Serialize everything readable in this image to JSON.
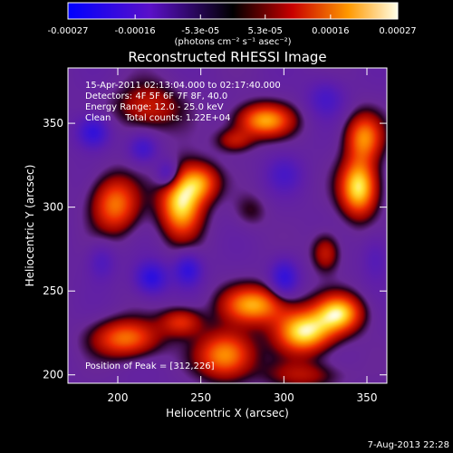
{
  "chart_data": {
    "type": "heatmap",
    "title": "Reconstructed RHESSI Image",
    "xlabel": "Heliocentric X (arcsec)",
    "ylabel": "Heliocentric Y (arcsec)",
    "xlim": [
      170,
      362
    ],
    "ylim": [
      195,
      383
    ],
    "x_ticks": [
      200,
      250,
      300,
      350
    ],
    "y_ticks": [
      200,
      250,
      300,
      350
    ],
    "colorbar": {
      "range": [
        -0.00027,
        0.00027
      ],
      "tick_values": [
        -0.00027,
        -0.00016,
        -5.3e-05,
        5.3e-05,
        0.00016,
        0.00027
      ],
      "tick_labels": [
        "-0.00027",
        "-0.00016",
        "-5.3e-05",
        "5.3e-05",
        "0.00016",
        "0.00027"
      ],
      "units": "(photons cm⁻² s⁻¹ asec⁻²)"
    },
    "annotations": [
      "15-Apr-2011 02:13:04.000 to 02:17:40.000",
      "Detectors: 4F 5F 6F 7F 8F, 40.0",
      "Energy Range: 12.0 - 25.0 keV",
      "Clean     Total counts: 1.22E+04"
    ],
    "peak_label": "Position of Peak = [312,226]",
    "peak": [
      312,
      226
    ],
    "sources": [
      {
        "x": 238,
        "y": 303,
        "sx": 9,
        "sy": 14,
        "amp": 1.0
      },
      {
        "x": 250,
        "y": 315,
        "sx": 8,
        "sy": 8,
        "amp": 0.6
      },
      {
        "x": 312,
        "y": 226,
        "sx": 12,
        "sy": 9,
        "amp": 1.0
      },
      {
        "x": 333,
        "y": 237,
        "sx": 10,
        "sy": 8,
        "amp": 0.9
      },
      {
        "x": 282,
        "y": 242,
        "sx": 14,
        "sy": 8,
        "amp": 0.8
      },
      {
        "x": 265,
        "y": 212,
        "sx": 12,
        "sy": 10,
        "amp": 0.8
      },
      {
        "x": 205,
        "y": 222,
        "sx": 14,
        "sy": 8,
        "amp": 0.7
      },
      {
        "x": 238,
        "y": 232,
        "sx": 9,
        "sy": 6,
        "amp": 0.5
      },
      {
        "x": 345,
        "y": 312,
        "sx": 8,
        "sy": 12,
        "amp": 1.0
      },
      {
        "x": 348,
        "y": 342,
        "sx": 8,
        "sy": 10,
        "amp": 0.7
      },
      {
        "x": 288,
        "y": 352,
        "sx": 12,
        "sy": 7,
        "amp": 0.8
      },
      {
        "x": 270,
        "y": 340,
        "sx": 8,
        "sy": 5,
        "amp": 0.4
      },
      {
        "x": 198,
        "y": 302,
        "sx": 10,
        "sy": 12,
        "amp": 0.7
      },
      {
        "x": 218,
        "y": 360,
        "sx": 14,
        "sy": 10,
        "amp": 0.45
      },
      {
        "x": 325,
        "y": 273,
        "sx": 6,
        "sy": 8,
        "amp": 0.45
      },
      {
        "x": 280,
        "y": 298,
        "sx": 7,
        "sy": 7,
        "amp": 0.2
      },
      {
        "x": 312,
        "y": 200,
        "sx": 16,
        "sy": 6,
        "amp": 0.35
      },
      {
        "x": 215,
        "y": 335,
        "sx": 6,
        "sy": 6,
        "amp": -0.4
      },
      {
        "x": 220,
        "y": 258,
        "sx": 7,
        "sy": 7,
        "amp": -0.6
      },
      {
        "x": 242,
        "y": 263,
        "sx": 6,
        "sy": 7,
        "amp": -0.55
      },
      {
        "x": 300,
        "y": 258,
        "sx": 6,
        "sy": 8,
        "amp": -0.55
      },
      {
        "x": 185,
        "y": 345,
        "sx": 7,
        "sy": 7,
        "amp": -0.6
      },
      {
        "x": 230,
        "y": 320,
        "sx": 5,
        "sy": 6,
        "amp": -0.5
      },
      {
        "x": 300,
        "y": 320,
        "sx": 8,
        "sy": 8,
        "amp": -0.3
      },
      {
        "x": 325,
        "y": 365,
        "sx": 8,
        "sy": 8,
        "amp": -0.35
      },
      {
        "x": 190,
        "y": 268,
        "sx": 6,
        "sy": 8,
        "amp": -0.3
      },
      {
        "x": 355,
        "y": 270,
        "sx": 6,
        "sy": 10,
        "amp": -0.25
      }
    ]
  },
  "footer": {
    "timestamp": "7-Aug-2013 22:28"
  }
}
